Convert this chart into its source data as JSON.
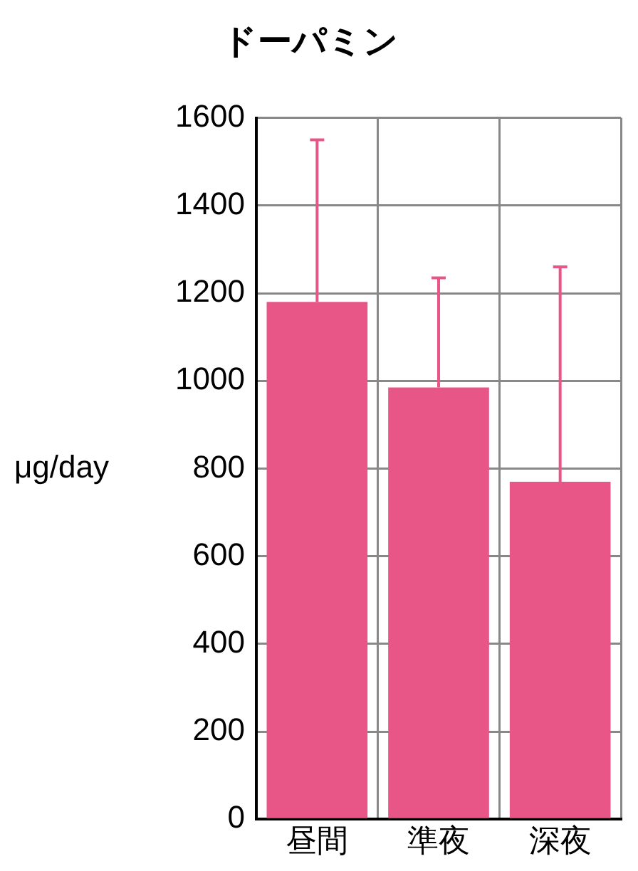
{
  "chart_data": {
    "type": "bar",
    "title": "ドーパミン",
    "ylabel": "μg/day",
    "categories": [
      "昼間",
      "準夜",
      "深夜"
    ],
    "values": [
      1180,
      985,
      770
    ],
    "errors": [
      [
        1180,
        1550
      ],
      [
        985,
        1235
      ],
      [
        770,
        1260
      ]
    ],
    "color": "#e85688",
    "ylim": [
      0,
      1600
    ],
    "yticks": [
      0,
      200,
      400,
      600,
      800,
      1000,
      1200,
      1400,
      1600
    ],
    "grid": true,
    "legend": false
  }
}
